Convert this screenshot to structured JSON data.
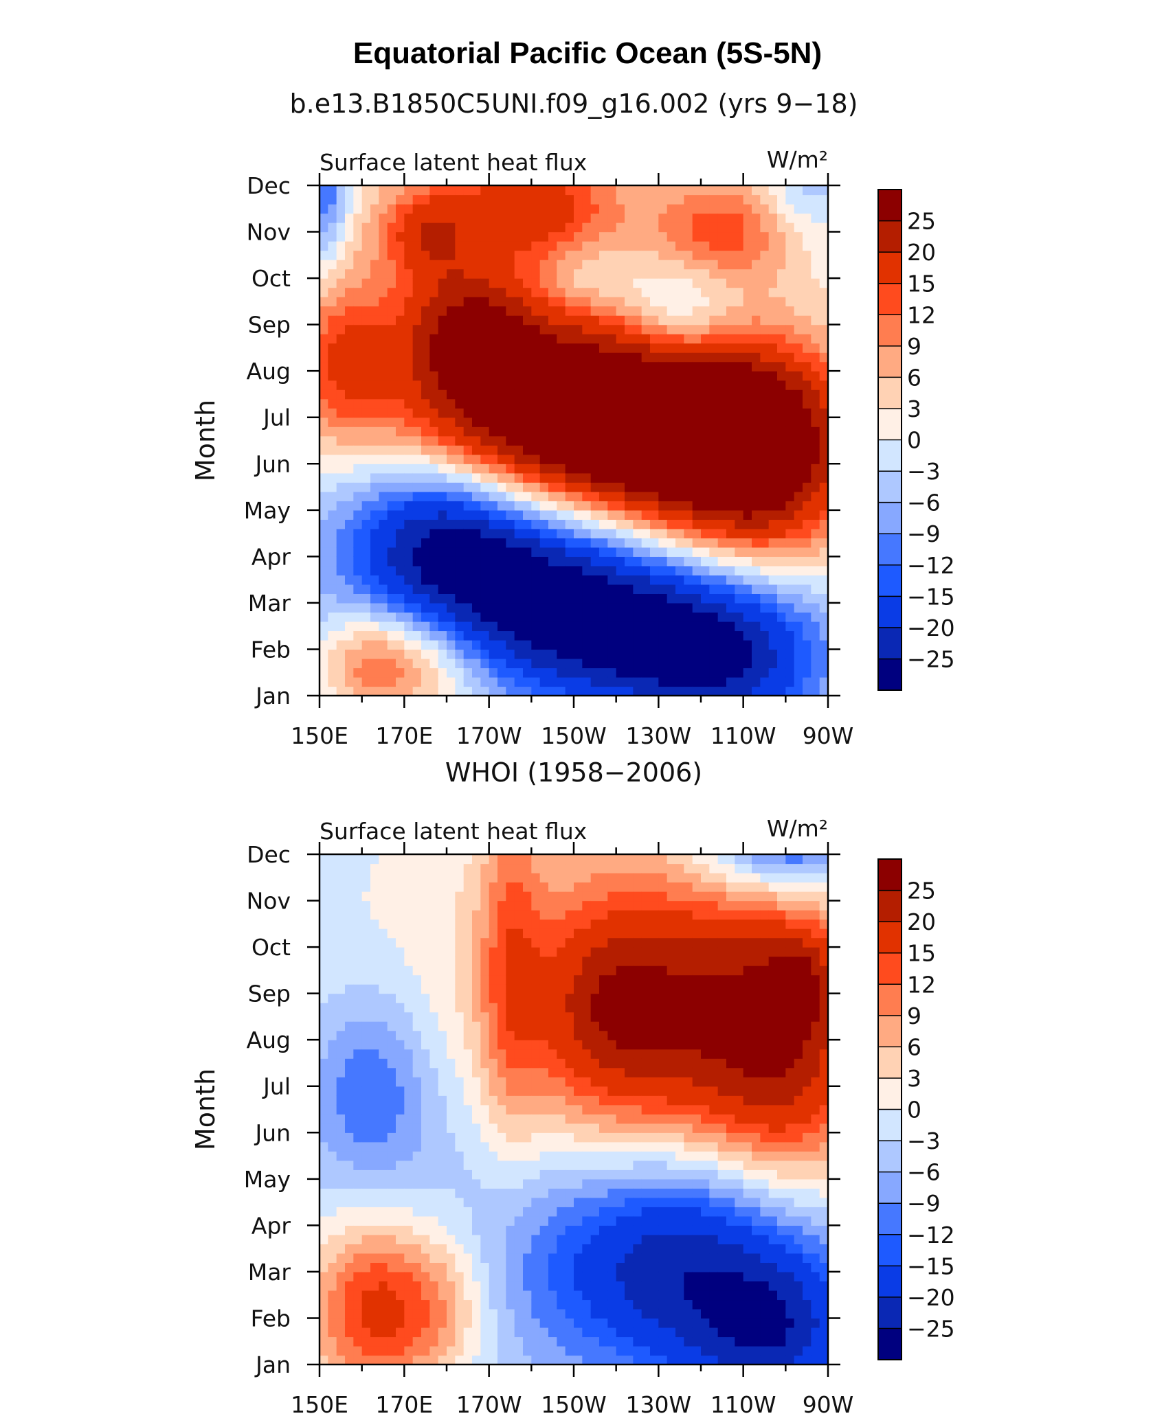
{
  "title": "Equatorial Pacific Ocean (5S-5N)",
  "colors": {
    "scale": [
      "#00007f",
      "#0a28b4",
      "#0a3ce6",
      "#1e5aff",
      "#4678ff",
      "#87a8ff",
      "#aec8ff",
      "#d2e6ff",
      "#fff0e6",
      "#ffd2b4",
      "#ffaa82",
      "#ff7d50",
      "#ff4b1e",
      "#e13200",
      "#b41e00",
      "#8c0000"
    ]
  },
  "chart_data": [
    {
      "type": "heatmap",
      "panel_title": "b.e13.B1850C5UNI.f09_g16.002 (yrs 9−18)",
      "left_label": "Surface latent heat flux",
      "units_label": "W/m²",
      "ylabel": "Month",
      "x_tick_labels": [
        "150E",
        "170E",
        "170W",
        "150W",
        "130W",
        "110W",
        "90W"
      ],
      "y_tick_labels": [
        "Jan",
        "Feb",
        "Mar",
        "Apr",
        "May",
        "Jun",
        "Jul",
        "Aug",
        "Sep",
        "Oct",
        "Nov",
        "Dec"
      ],
      "x_range": [
        150,
        270
      ],
      "colorbar_labels": [
        "25",
        "20",
        "15",
        "12",
        "9",
        "6",
        "3",
        "0",
        "−3",
        "−6",
        "−9",
        "−12",
        "−15",
        "−20",
        "−25"
      ],
      "levels": [
        -25,
        -20,
        -15,
        -12,
        -9,
        -6,
        -3,
        0,
        3,
        6,
        9,
        12,
        15,
        20,
        25
      ],
      "features": [
        {
          "lon": 155,
          "month": 0.6,
          "amp": -4,
          "sx": 20,
          "sy": 6
        },
        {
          "lon": 205,
          "month": 6.2,
          "amp": 32,
          "sx": 28,
          "sy": 1.4
        },
        {
          "lon": 240,
          "month": 5.5,
          "amp": 28,
          "sx": 22,
          "sy": 1.4
        },
        {
          "lon": 255,
          "month": 5.0,
          "amp": 16,
          "sx": 14,
          "sy": 1.6
        },
        {
          "lon": 185,
          "month": 8.0,
          "amp": 18,
          "sx": 12,
          "sy": 1.0
        },
        {
          "lon": 155,
          "month": 7.3,
          "amp": 13,
          "sx": 8,
          "sy": 1.3
        },
        {
          "lon": 195,
          "month": 2.6,
          "amp": -22,
          "sx": 22,
          "sy": 1.3
        },
        {
          "lon": 225,
          "month": 1.3,
          "amp": -24,
          "sx": 24,
          "sy": 1.2
        },
        {
          "lon": 248,
          "month": 0.6,
          "amp": -14,
          "sx": 16,
          "sy": 1.2
        },
        {
          "lon": 178,
          "month": 3.6,
          "amp": -14,
          "sx": 14,
          "sy": 1.3
        },
        {
          "lon": 172,
          "month": 0.8,
          "amp": 14,
          "sx": 12,
          "sy": 0.9
        },
        {
          "lon": 160,
          "month": 0.6,
          "amp": 8,
          "sx": 8,
          "sy": 0.9
        },
        {
          "lon": 200,
          "month": 10.6,
          "amp": 14,
          "sx": 14,
          "sy": 0.9
        },
        {
          "lon": 175,
          "month": 10.0,
          "amp": 13,
          "sx": 8,
          "sy": 0.7
        },
        {
          "lon": 245,
          "month": 10.0,
          "amp": 12,
          "sx": 12,
          "sy": 0.8
        },
        {
          "lon": 235,
          "month": 8.2,
          "amp": -10,
          "sx": 10,
          "sy": 0.9
        },
        {
          "lon": 212,
          "month": 9.0,
          "amp": -5,
          "sx": 9,
          "sy": 0.5
        },
        {
          "lon": 190,
          "month": 10.5,
          "amp": 4,
          "sx": 50,
          "sy": 2
        },
        {
          "lon": 151,
          "month": 11.0,
          "amp": -14,
          "sx": 4,
          "sy": 1.2
        },
        {
          "lon": 265,
          "month": 11.0,
          "amp": -6,
          "sx": 8,
          "sy": 0.8
        }
      ]
    },
    {
      "type": "heatmap",
      "panel_title": "WHOI (1958−2006)",
      "left_label": "Surface latent heat flux",
      "units_label": "W/m²",
      "ylabel": "Month",
      "x_tick_labels": [
        "150E",
        "170E",
        "170W",
        "150W",
        "130W",
        "110W",
        "90W"
      ],
      "y_tick_labels": [
        "Jan",
        "Feb",
        "Mar",
        "Apr",
        "May",
        "Jun",
        "Jul",
        "Aug",
        "Sep",
        "Oct",
        "Nov",
        "Dec"
      ],
      "x_range": [
        150,
        270
      ],
      "colorbar_labels": [
        "25",
        "20",
        "15",
        "12",
        "9",
        "6",
        "3",
        "0",
        "−3",
        "−6",
        "−9",
        "−12",
        "−15",
        "−20",
        "−25"
      ],
      "levels": [
        -25,
        -20,
        -15,
        -12,
        -9,
        -6,
        -3,
        0,
        3,
        6,
        9,
        12,
        15,
        20,
        25
      ],
      "features": [
        {
          "lon": 170,
          "month": 6,
          "amp": -6,
          "sx": 25,
          "sy": 6
        },
        {
          "lon": 228,
          "month": 7.5,
          "amp": 22,
          "sx": 22,
          "sy": 2.2
        },
        {
          "lon": 260,
          "month": 7.0,
          "amp": 20,
          "sx": 14,
          "sy": 2.4
        },
        {
          "lon": 264,
          "month": 8.2,
          "amp": 8,
          "sx": 5,
          "sy": 0.7
        },
        {
          "lon": 220,
          "month": 7.8,
          "amp": 6,
          "sx": 10,
          "sy": 1.0
        },
        {
          "lon": 163,
          "month": 1.2,
          "amp": 20,
          "sx": 11,
          "sy": 1.4
        },
        {
          "lon": 180,
          "month": 1.3,
          "amp": 8,
          "sx": 8,
          "sy": 1.2
        },
        {
          "lon": 235,
          "month": 2.2,
          "amp": -24,
          "sx": 25,
          "sy": 1.8
        },
        {
          "lon": 258,
          "month": 0.6,
          "amp": -16,
          "sx": 14,
          "sy": 1.2
        },
        {
          "lon": 260,
          "month": 11.5,
          "amp": -20,
          "sx": 14,
          "sy": 1.0
        },
        {
          "lon": 162,
          "month": 6.0,
          "amp": -9,
          "sx": 10,
          "sy": 1.4
        },
        {
          "lon": 180,
          "month": 8.8,
          "amp": 6,
          "sx": 30,
          "sy": 3
        },
        {
          "lon": 195,
          "month": 9.0,
          "amp": 8,
          "sx": 5,
          "sy": 3
        }
      ]
    }
  ]
}
